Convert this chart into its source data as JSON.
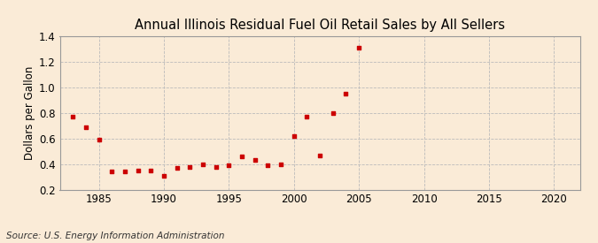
{
  "title": "Annual Illinois Residual Fuel Oil Retail Sales by All Sellers",
  "ylabel": "Dollars per Gallon",
  "source": "Source: U.S. Energy Information Administration",
  "background_color": "#faebd7",
  "marker_color": "#cc0000",
  "xlim": [
    1982,
    2022
  ],
  "ylim": [
    0.2,
    1.4
  ],
  "xticks": [
    1985,
    1990,
    1995,
    2000,
    2005,
    2010,
    2015,
    2020
  ],
  "yticks": [
    0.2,
    0.4,
    0.6,
    0.8,
    1.0,
    1.2,
    1.4
  ],
  "years": [
    1983,
    1984,
    1985,
    1986,
    1987,
    1988,
    1989,
    1990,
    1991,
    1992,
    1993,
    1994,
    1995,
    1996,
    1997,
    1998,
    1999,
    2000,
    2001,
    2002,
    2003,
    2004,
    2005
  ],
  "values": [
    0.77,
    0.69,
    0.59,
    0.34,
    0.34,
    0.35,
    0.35,
    0.31,
    0.37,
    0.38,
    0.4,
    0.38,
    0.39,
    0.46,
    0.43,
    0.39,
    0.4,
    0.62,
    0.77,
    0.47,
    0.8,
    0.95,
    1.31
  ],
  "title_fontsize": 10.5,
  "source_fontsize": 7.5,
  "tick_fontsize": 8.5,
  "ylabel_fontsize": 8.5
}
